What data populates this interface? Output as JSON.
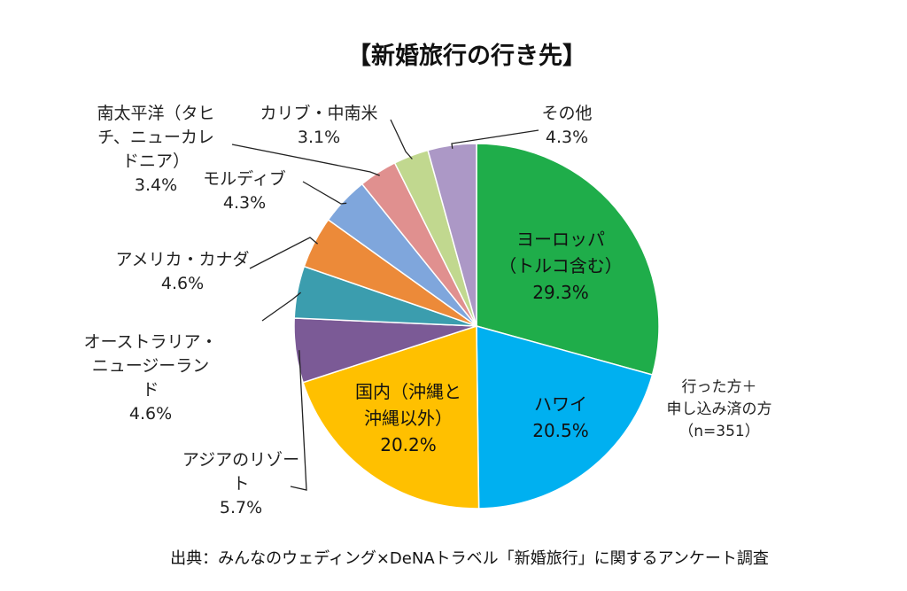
{
  "chart_data": {
    "type": "pie",
    "title": "【新婚旅行の行き先】",
    "note_lines": [
      "行った方＋",
      "申し込み済の方",
      "（n=351）"
    ],
    "source": "出典：みんなのウェディング×DeNAトラベル「新婚旅行」に関するアンケート調査",
    "slices": [
      {
        "label_lines": [
          "ヨーロッパ",
          "（トルコ含む）"
        ],
        "value": 29.3,
        "value_label": "29.3%",
        "color": "#1fad4a"
      },
      {
        "label_lines": [
          "ハワイ"
        ],
        "value": 20.5,
        "value_label": "20.5%",
        "color": "#00b0f0"
      },
      {
        "label_lines": [
          "国内（沖縄と",
          "沖縄以外）"
        ],
        "value": 20.2,
        "value_label": "20.2%",
        "color": "#ffc000"
      },
      {
        "label_lines": [
          "アジアのリゾー",
          "ト"
        ],
        "value": 5.7,
        "value_label": "5.7%",
        "color": "#7b5a96"
      },
      {
        "label_lines": [
          "オーストラリア・",
          "ニュージーラン",
          "ド"
        ],
        "value": 4.6,
        "value_label": "4.6%",
        "color": "#3b9dae"
      },
      {
        "label_lines": [
          "アメリカ・カナダ"
        ],
        "value": 4.6,
        "value_label": "4.6%",
        "color": "#ec8a39"
      },
      {
        "label_lines": [
          "モルディブ"
        ],
        "value": 4.3,
        "value_label": "4.3%",
        "color": "#7fa6dc"
      },
      {
        "label_lines": [
          "南太平洋（タヒ",
          "チ、ニューカレ",
          "ドニア）"
        ],
        "value": 3.4,
        "value_label": "3.4%",
        "color": "#e0908f"
      },
      {
        "label_lines": [
          "カリブ・中南米"
        ],
        "value": 3.1,
        "value_label": "3.1%",
        "color": "#c1d88f"
      },
      {
        "label_lines": [
          "その他"
        ],
        "value": 4.3,
        "value_label": "4.3%",
        "color": "#ac98c6"
      }
    ]
  }
}
